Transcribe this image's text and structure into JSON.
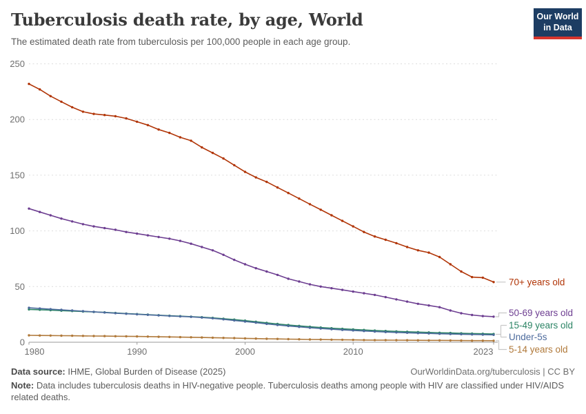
{
  "header": {
    "title": "Tuberculosis death rate, by age, World",
    "subtitle": "The estimated death rate from tuberculosis per 100,000 people in each age group.",
    "logo": {
      "line1": "Our World",
      "line2": "in Data",
      "bg_color": "#1d3d63",
      "bar_color": "#d7352e"
    }
  },
  "chart_data": {
    "type": "line",
    "title": "Tuberculosis death rate, by age, World",
    "xlabel": "",
    "ylabel": "",
    "ylim": [
      0,
      250
    ],
    "yticks": [
      0,
      50,
      100,
      150,
      200,
      250
    ],
    "xticks": [
      1980,
      1990,
      2000,
      2010,
      2023
    ],
    "grid": "horizontal-dashed",
    "legend_position": "right-of-line-ends",
    "x": [
      1980,
      1981,
      1982,
      1983,
      1984,
      1985,
      1986,
      1987,
      1988,
      1989,
      1990,
      1991,
      1992,
      1993,
      1994,
      1995,
      1996,
      1997,
      1998,
      1999,
      2000,
      2001,
      2002,
      2003,
      2004,
      2005,
      2006,
      2007,
      2008,
      2009,
      2010,
      2011,
      2012,
      2013,
      2014,
      2015,
      2016,
      2017,
      2018,
      2019,
      2020,
      2021,
      2022,
      2023
    ],
    "series": [
      {
        "name": "70+ years old",
        "color": "#B13507",
        "values": [
          232,
          227,
          221,
          216,
          211,
          207,
          205,
          204,
          203,
          201,
          198,
          195,
          191,
          188,
          184,
          181,
          175,
          170,
          165,
          159,
          153,
          148,
          144,
          139,
          134,
          129,
          124,
          119,
          114,
          109,
          104,
          99,
          95,
          92,
          89,
          85.5,
          82.5,
          80.5,
          76.5,
          70,
          63.5,
          58.5,
          58,
          54
        ]
      },
      {
        "name": "50-69 years old",
        "color": "#6D3E91",
        "values": [
          120,
          117,
          114,
          111,
          108.5,
          106,
          104,
          102.5,
          101,
          99,
          97.5,
          96,
          94.5,
          93,
          91,
          88.5,
          85.5,
          82.5,
          78.5,
          74,
          70,
          66.5,
          63.5,
          60.5,
          57,
          54.5,
          52,
          50,
          48.5,
          47,
          45.5,
          44,
          42.5,
          40.5,
          38.5,
          36.5,
          34.5,
          33,
          31.5,
          28.5,
          26,
          24.5,
          23.5,
          23
        ]
      },
      {
        "name": "15-49 years old",
        "color": "#2C8465",
        "values": [
          29.5,
          29.2,
          28.8,
          28.4,
          28,
          27.6,
          27.2,
          26.8,
          26.3,
          25.8,
          25.3,
          24.8,
          24.3,
          23.8,
          23.4,
          23,
          22.5,
          21.9,
          21.1,
          20.3,
          19.4,
          18.4,
          17.4,
          16.4,
          15.5,
          14.7,
          13.9,
          13.2,
          12.6,
          12,
          11.5,
          11,
          10.5,
          10.1,
          9.7,
          9.4,
          9.1,
          8.8,
          8.5,
          8.3,
          8,
          7.8,
          7.6,
          7.4
        ]
      },
      {
        "name": "Under-5s",
        "color": "#4C6A9C",
        "values": [
          30.9,
          30.3,
          29.7,
          29.1,
          28.5,
          27.9,
          27.3,
          26.7,
          26.1,
          25.6,
          25.1,
          24.6,
          24.1,
          23.6,
          23.2,
          22.8,
          22.2,
          21.5,
          20.6,
          19.6,
          18.6,
          17.6,
          16.5,
          15.5,
          14.6,
          13.8,
          13,
          12.3,
          11.7,
          11.1,
          10.6,
          10.1,
          9.6,
          9.2,
          8.8,
          8.5,
          8.2,
          7.9,
          7.6,
          7.4,
          7.2,
          7,
          6.8,
          6.6
        ]
      },
      {
        "name": "5-14 years old",
        "color": "#B0793A",
        "values": [
          6.2,
          6.1,
          6,
          5.9,
          5.8,
          5.7,
          5.6,
          5.5,
          5.4,
          5.3,
          5.2,
          5.05,
          4.9,
          4.75,
          4.6,
          4.45,
          4.3,
          4.1,
          3.9,
          3.7,
          3.5,
          3.3,
          3.1,
          2.95,
          2.8,
          2.65,
          2.5,
          2.4,
          2.3,
          2.2,
          2.1,
          2,
          1.95,
          1.9,
          1.85,
          1.8,
          1.75,
          1.7,
          1.65,
          1.6,
          1.5,
          1.45,
          1.4,
          1.35
        ]
      }
    ],
    "axis_color": "#999999",
    "gridline_color": "#dcdcdc",
    "tick_label_color": "#6e6e6e"
  },
  "footer": {
    "source_label": "Data source:",
    "source_value": " IHME, Global Burden of Disease (2025)",
    "rights": "OurWorldinData.org/tuberculosis | CC BY",
    "note_label": "Note:",
    "note_value": " Data includes tuberculosis deaths in HIV-negative people. Tuberculosis deaths among people with HIV are classified under HIV/AIDS related deaths."
  }
}
